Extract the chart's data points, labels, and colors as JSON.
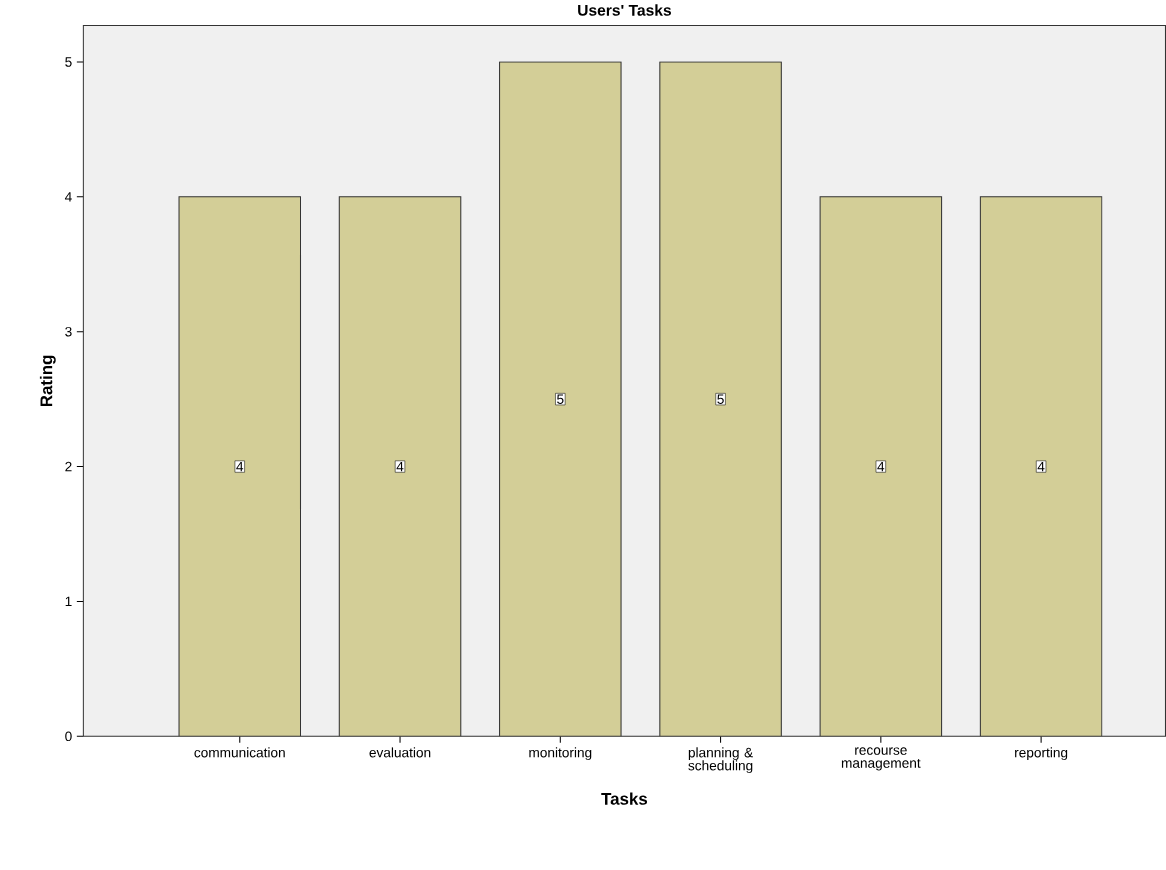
{
  "chart_data": {
    "type": "bar",
    "title": "Users' Tasks",
    "xlabel": "Tasks",
    "ylabel": "Rating",
    "categories": [
      "communication",
      "evaluation",
      "monitoring",
      "planning & scheduling",
      "recourse management",
      "reporting"
    ],
    "values": [
      4,
      4,
      5,
      5,
      4,
      4
    ],
    "color": "#d3ce97",
    "ylim": [
      0,
      5.27
    ],
    "yticks": [
      0,
      1,
      2,
      3,
      4,
      5
    ],
    "data_labels": true,
    "grid": false
  }
}
